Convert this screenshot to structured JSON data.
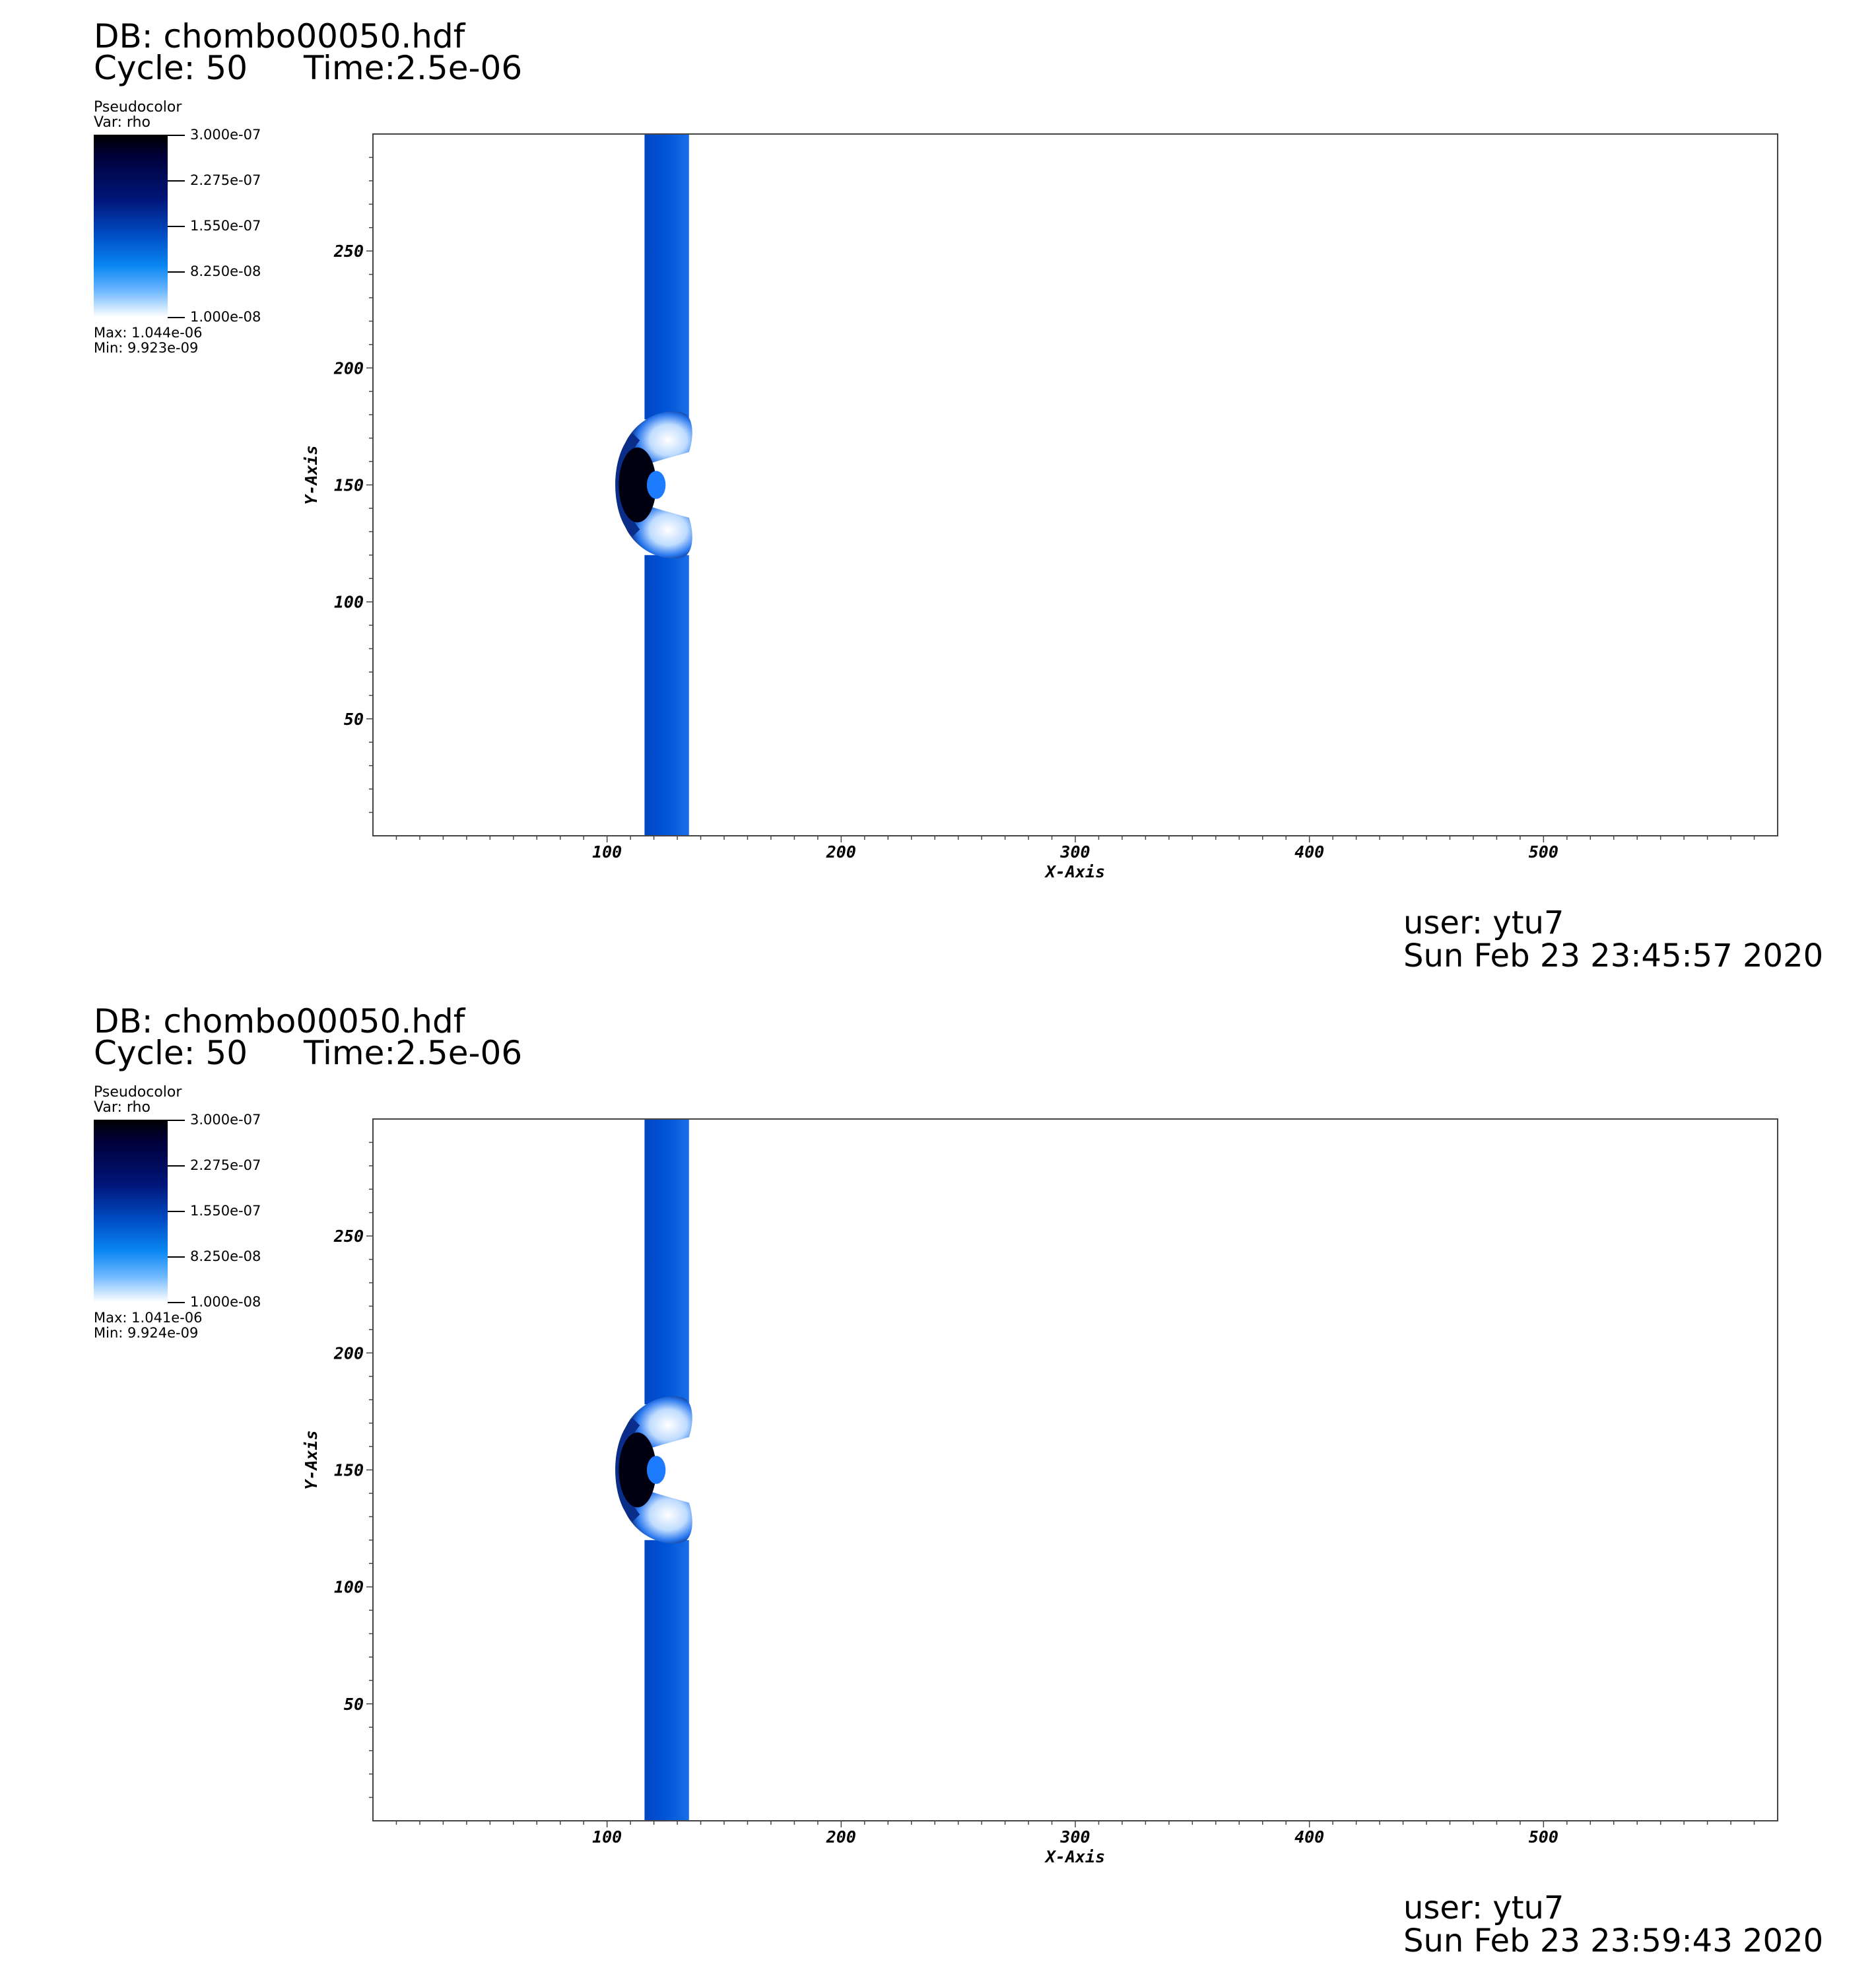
{
  "panels": [
    {
      "db": "DB: chombo00050.hdf",
      "cycle": "Cycle: 50",
      "time": "Time:2.5e-06",
      "legend": {
        "plot_type": "Pseudocolor",
        "var": "Var: rho",
        "tick_labels": [
          "3.000e-07",
          "2.275e-07",
          "1.550e-07",
          "8.250e-08",
          "1.000e-08"
        ],
        "max": "Max:  1.044e-06",
        "min": "Min:  9.923e-09"
      },
      "user": "user: ytu7",
      "date": "Sun Feb 23 23:45:57 2020"
    },
    {
      "db": "DB: chombo00050.hdf",
      "cycle": "Cycle: 50",
      "time": "Time:2.5e-06",
      "legend": {
        "plot_type": "Pseudocolor",
        "var": "Var: rho",
        "tick_labels": [
          "3.000e-07",
          "2.275e-07",
          "1.550e-07",
          "8.250e-08",
          "1.000e-08"
        ],
        "max": "Max:  1.041e-06",
        "min": "Min:  9.924e-09"
      },
      "user": "user: ytu7",
      "date": "Sun Feb 23 23:59:43 2020"
    }
  ],
  "chart_data": [
    {
      "type": "heatmap",
      "title": "",
      "xlabel": "X-Axis",
      "ylabel": "Y-Axis",
      "xlim": [
        0,
        600
      ],
      "ylim": [
        0,
        300
      ],
      "x_ticks": [
        100,
        200,
        300,
        400,
        500
      ],
      "y_ticks": [
        50,
        100,
        150,
        200,
        250
      ],
      "colorbar": {
        "min": 1e-08,
        "max": 3e-07
      },
      "colors": {
        "dark": "#000000",
        "mid": "#0055d8",
        "light": "#ffffff"
      }
    },
    {
      "type": "heatmap",
      "title": "",
      "xlabel": "X-Axis",
      "ylabel": "Y-Axis",
      "xlim": [
        0,
        600
      ],
      "ylim": [
        0,
        300
      ],
      "x_ticks": [
        100,
        200,
        300,
        400,
        500
      ],
      "y_ticks": [
        50,
        100,
        150,
        200,
        250
      ],
      "colorbar": {
        "min": 1e-08,
        "max": 3e-07
      },
      "colors": {
        "dark": "#000000",
        "mid": "#0055d8",
        "light": "#ffffff"
      }
    }
  ]
}
